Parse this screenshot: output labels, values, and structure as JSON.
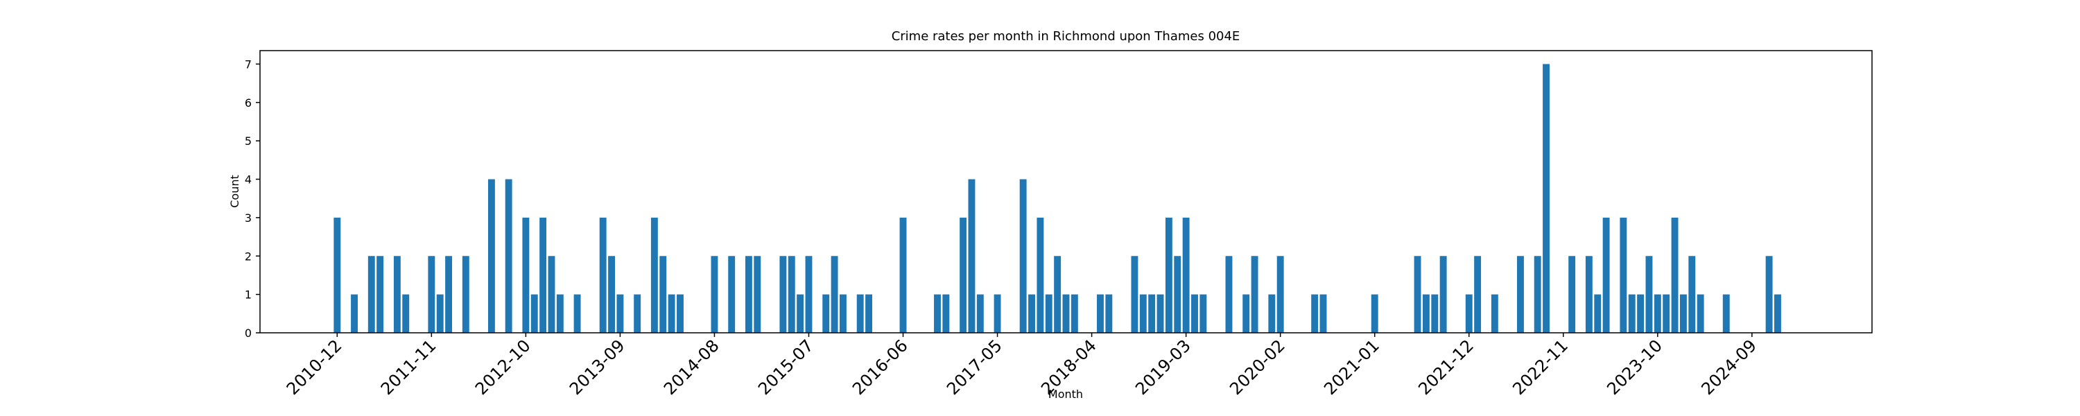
{
  "chart_data": {
    "type": "bar",
    "title": "Crime rates per month in Richmond upon Thames 004E",
    "x_label": "Month",
    "y_label": "Count",
    "color": "#1f77b4",
    "x": [
      "2010-12",
      "2011-02",
      "2011-04",
      "2011-05",
      "2011-07",
      "2011-08",
      "2011-11",
      "2011-12",
      "2012-01",
      "2012-03",
      "2012-06",
      "2012-08",
      "2012-10",
      "2012-11",
      "2012-12",
      "2013-01",
      "2013-02",
      "2013-04",
      "2013-07",
      "2013-08",
      "2013-09",
      "2013-11",
      "2014-01",
      "2014-02",
      "2014-03",
      "2014-04",
      "2014-08",
      "2014-10",
      "2014-12",
      "2015-01",
      "2015-04",
      "2015-05",
      "2015-06",
      "2015-07",
      "2015-09",
      "2015-10",
      "2015-11",
      "2016-01",
      "2016-02",
      "2016-06",
      "2016-10",
      "2016-11",
      "2017-01",
      "2017-02",
      "2017-03",
      "2017-05",
      "2017-08",
      "2017-09",
      "2017-10",
      "2017-11",
      "2017-12",
      "2018-01",
      "2018-02",
      "2018-05",
      "2018-06",
      "2018-09",
      "2018-10",
      "2018-11",
      "2018-12",
      "2019-01",
      "2019-02",
      "2019-03",
      "2019-04",
      "2019-05",
      "2019-08",
      "2019-10",
      "2019-11",
      "2020-01",
      "2020-02",
      "2020-06",
      "2020-07",
      "2021-01",
      "2021-06",
      "2021-07",
      "2021-08",
      "2021-09",
      "2021-12",
      "2022-01",
      "2022-03",
      "2022-06",
      "2022-08",
      "2022-09",
      "2022-12",
      "2023-02",
      "2023-03",
      "2023-04",
      "2023-06",
      "2023-07",
      "2023-08",
      "2023-09",
      "2023-10",
      "2023-11",
      "2023-12",
      "2024-01",
      "2024-02",
      "2024-03",
      "2024-06",
      "2024-11",
      "2024-12"
    ],
    "values": [
      3,
      1,
      2,
      2,
      2,
      1,
      2,
      1,
      2,
      2,
      4,
      4,
      3,
      1,
      3,
      2,
      1,
      1,
      3,
      2,
      1,
      1,
      3,
      2,
      1,
      1,
      2,
      2,
      2,
      2,
      2,
      2,
      1,
      2,
      1,
      2,
      1,
      1,
      1,
      3,
      1,
      1,
      3,
      4,
      1,
      1,
      4,
      1,
      3,
      1,
      2,
      1,
      1,
      1,
      1,
      2,
      1,
      1,
      1,
      3,
      2,
      3,
      1,
      1,
      2,
      1,
      2,
      1,
      2,
      1,
      1,
      1,
      2,
      1,
      1,
      2,
      1,
      2,
      1,
      2,
      2,
      7,
      2,
      2,
      1,
      3,
      3,
      1,
      1,
      2,
      1,
      1,
      3,
      1,
      2,
      1,
      1,
      2,
      1
    ],
    "xlim": [
      "2010-03",
      "2025-11"
    ],
    "xticks": [
      "2010-12",
      "2011-11",
      "2012-10",
      "2013-09",
      "2014-08",
      "2015-07",
      "2016-06",
      "2017-05",
      "2018-04",
      "2019-03",
      "2020-02",
      "2021-01",
      "2021-12",
      "2022-11",
      "2023-10",
      "2024-09"
    ],
    "ylim": [
      0,
      7.35
    ],
    "yticks": [
      0,
      1,
      2,
      3,
      4,
      5,
      6,
      7
    ]
  }
}
